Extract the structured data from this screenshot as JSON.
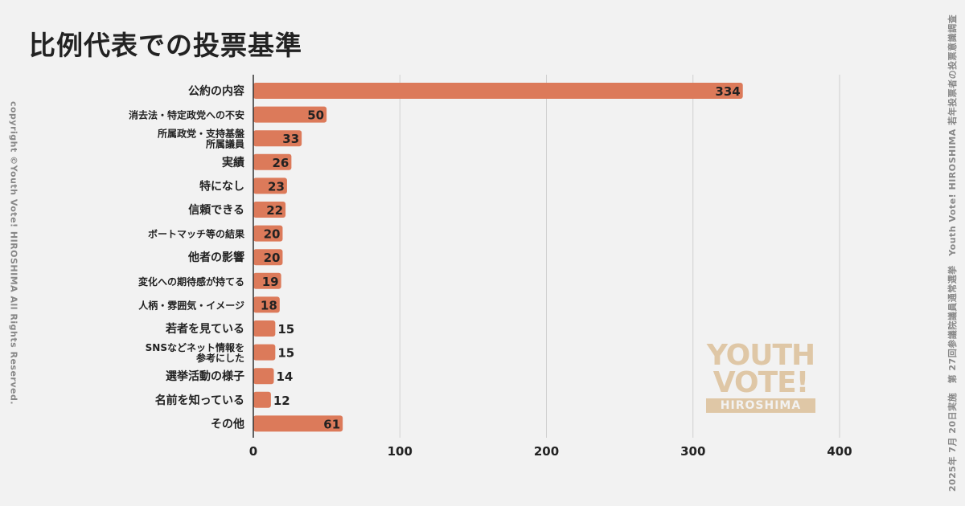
{
  "page": {
    "copyright": "copyright ©Youth Vote! HIROSHIMA  All Rights Reserved.",
    "survey_note": "2025年 7月 20日実施　第 27回参議院議員通常選挙　Youth Vote! HIROSHIMA 若年投票者の投票意識調査"
  },
  "logo": {
    "line1": "YOUTH",
    "line2": "VOTE!",
    "line3": "HIROSHIMA"
  },
  "colors": {
    "bar": "#dc7a5a",
    "grid": "#cfcfcf",
    "axis": "#333333",
    "text": "#222222",
    "logo": "#dfc7a6"
  },
  "chart_data": {
    "type": "bar",
    "orientation": "horizontal",
    "title": "比例代表での投票基準",
    "categories": [
      [
        "公約の内容"
      ],
      [
        "消去法・特定政党への不安"
      ],
      [
        "所属政党・支持基盤",
        "所属議員"
      ],
      [
        "実績"
      ],
      [
        "特になし"
      ],
      [
        "信頼できる"
      ],
      [
        "ボートマッチ等の結果"
      ],
      [
        "他者の影響"
      ],
      [
        "変化への期待感が持てる"
      ],
      [
        "人柄・雰囲気・イメージ"
      ],
      [
        "若者を見ている"
      ],
      [
        "SNSなどネット情報を",
        "参考にした"
      ],
      [
        "選挙活動の様子"
      ],
      [
        "名前を知っている"
      ],
      [
        "その他"
      ]
    ],
    "values": [
      334,
      50,
      33,
      26,
      23,
      22,
      20,
      20,
      19,
      18,
      15,
      15,
      14,
      12,
      61
    ],
    "xlim": [
      0,
      400
    ],
    "xticks": [
      0,
      100,
      200,
      300,
      400
    ],
    "xlabel": "",
    "ylabel": "",
    "grid": "vertical",
    "legend": "none"
  }
}
